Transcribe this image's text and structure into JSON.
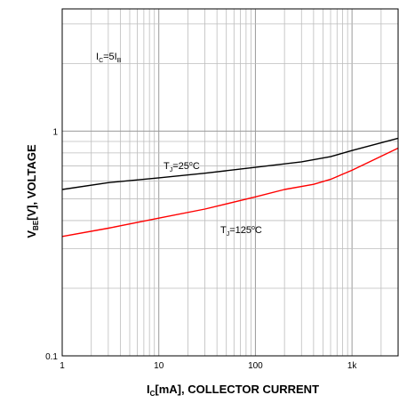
{
  "chart_data": {
    "type": "line",
    "x_scale": "log",
    "y_scale": "log",
    "xlim": [
      1,
      3000
    ],
    "ylim": [
      0.1,
      3.5
    ],
    "grid": true,
    "xlabel": {
      "main": "I",
      "sub": "C",
      "rest": "[mA], COLLECTOR CURRENT"
    },
    "ylabel": {
      "main": "V",
      "sub": "BE",
      "rest": "[V], VOLTAGE"
    },
    "x_ticks": [
      {
        "value": 1,
        "label": "1"
      },
      {
        "value": 10,
        "label": "10"
      },
      {
        "value": 100,
        "label": "100"
      },
      {
        "value": 1000,
        "label": "1k"
      }
    ],
    "y_ticks": [
      {
        "value": 0.1,
        "label": "0.1"
      },
      {
        "value": 1,
        "label": "1"
      }
    ],
    "condition": {
      "a": "I",
      "a_sub": "C",
      "mid": "=5I",
      "b_sub": "B"
    },
    "series": [
      {
        "name": "T_J=25°C",
        "color": "#000000",
        "points": [
          [
            1,
            0.55
          ],
          [
            3,
            0.59
          ],
          [
            10,
            0.62
          ],
          [
            30,
            0.65
          ],
          [
            100,
            0.69
          ],
          [
            300,
            0.73
          ],
          [
            600,
            0.77
          ],
          [
            1000,
            0.82
          ],
          [
            3000,
            0.93
          ]
        ]
      },
      {
        "name": "T_J=125°C",
        "color": "#ff0000",
        "points": [
          [
            1,
            0.34
          ],
          [
            3,
            0.37
          ],
          [
            10,
            0.41
          ],
          [
            30,
            0.45
          ],
          [
            100,
            0.51
          ],
          [
            200,
            0.55
          ],
          [
            400,
            0.58
          ],
          [
            600,
            0.61
          ],
          [
            1000,
            0.67
          ],
          [
            3000,
            0.84
          ]
        ]
      }
    ],
    "annotations": [
      {
        "series": 0,
        "main": "T",
        "sub": "J",
        "rest": "=25",
        "sup": "o",
        "unit": "C"
      },
      {
        "series": 1,
        "main": "T",
        "sub": "J",
        "rest": "=125",
        "sup": "o",
        "unit": "C"
      }
    ]
  }
}
